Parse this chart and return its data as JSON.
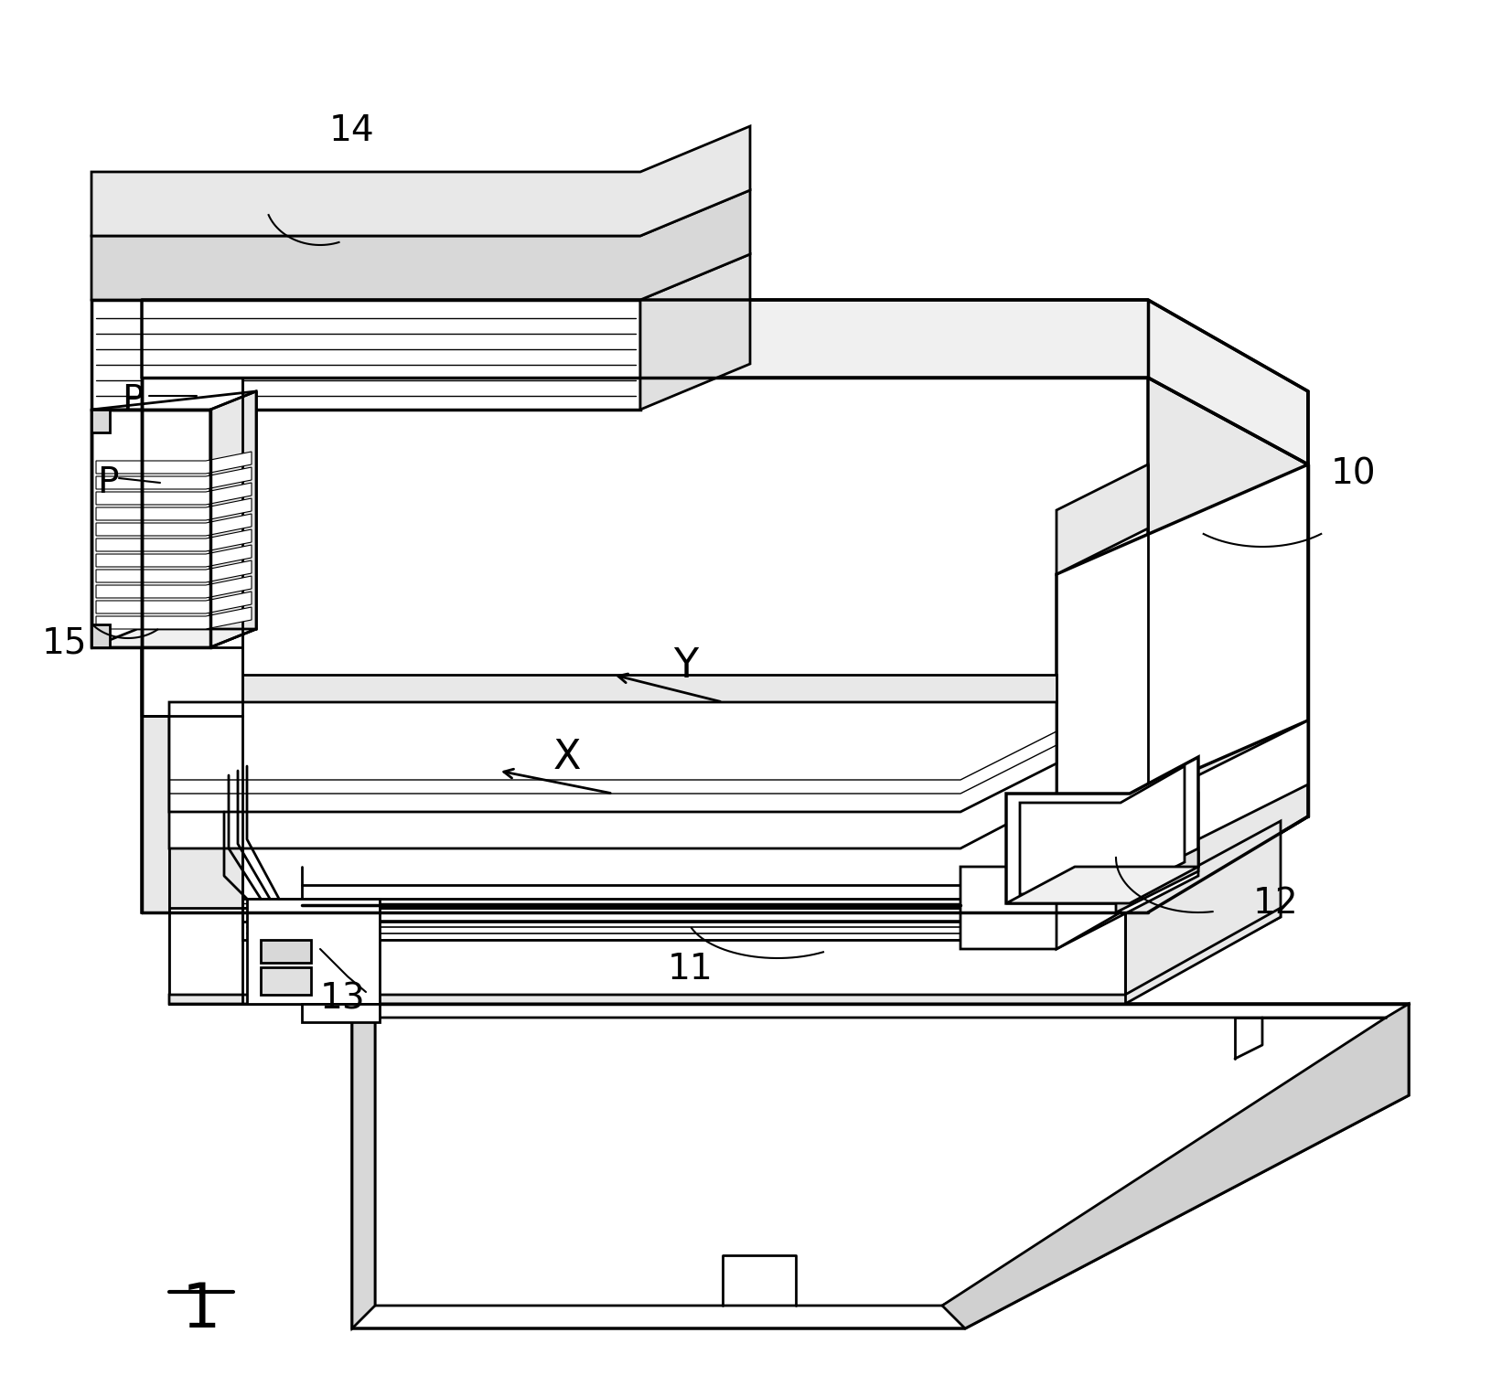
{
  "labels": {
    "main": "1",
    "label_10": "10",
    "label_11": "11",
    "label_12": "12",
    "label_13": "13",
    "label_14": "14",
    "label_15": "15",
    "label_P1": "P",
    "label_P2": "P",
    "label_X": "X",
    "label_Y": "Y"
  },
  "line_color": "#000000",
  "bg_color": "#ffffff",
  "lw": 2.0,
  "tlw": 2.5
}
